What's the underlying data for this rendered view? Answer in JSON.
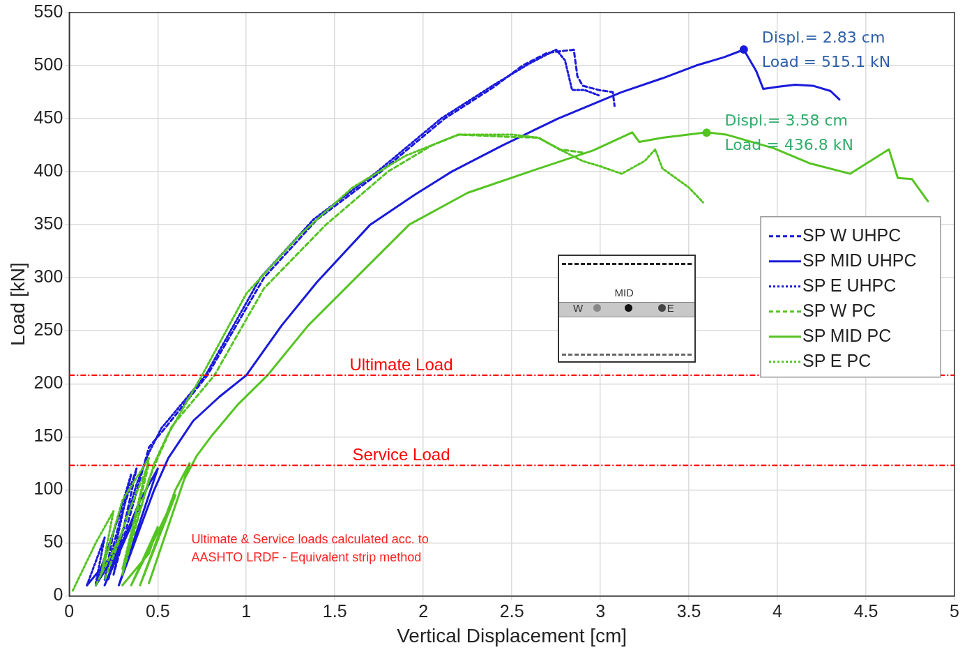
{
  "chart_data": {
    "type": "line",
    "xlabel": "Vertical Displacement [cm]",
    "ylabel": "Load [kN]",
    "xlim": [
      0,
      5
    ],
    "xticks": [
      0,
      0.5,
      1,
      1.5,
      2,
      2.5,
      3,
      3.5,
      4,
      4.5,
      5
    ],
    "ylim": [
      0,
      550
    ],
    "yticks": [
      0,
      50,
      100,
      150,
      200,
      250,
      300,
      350,
      400,
      450,
      500,
      550
    ],
    "grid": true,
    "legend": "right",
    "marker": "none",
    "series": [
      {
        "name": "SP W UHPC",
        "color": "#1a1adb",
        "line_style": "dashed",
        "x": [
          0.15,
          0.25,
          0.2,
          0.3,
          0.38,
          0.25,
          0.4,
          0.45,
          0.55,
          0.78,
          1.1,
          1.4,
          1.76,
          2.12,
          2.4,
          2.56,
          2.7,
          2.85,
          2.87,
          2.9,
          2.99,
          3.07,
          3.08
        ],
        "values": [
          10,
          60,
          15,
          80,
          120,
          20,
          110,
          140,
          160,
          208,
          300,
          355,
          400,
          450,
          480,
          500,
          512,
          515,
          490,
          481,
          477,
          475,
          462
        ]
      },
      {
        "name": "SP MID UHPC",
        "color": "#1a1adb",
        "line_style": "solid",
        "x": [
          0.1,
          0.25,
          0.3,
          0.15,
          0.3,
          0.4,
          0.2,
          0.4,
          0.5,
          0.28,
          0.48,
          0.56,
          0.6,
          0.7,
          0.85,
          1.0,
          1.2,
          1.4,
          1.7,
          1.95,
          2.16,
          2.45,
          2.76,
          3.12,
          3.35,
          3.54,
          3.7,
          3.81,
          3.88,
          3.92,
          4.0,
          4.1,
          4.2,
          4.3,
          4.35
        ],
        "values": [
          10,
          40,
          60,
          10,
          50,
          85,
          10,
          90,
          120,
          10,
          100,
          130,
          140,
          165,
          188,
          208,
          255,
          296,
          350,
          378,
          400,
          425,
          450,
          475,
          488,
          500,
          508,
          515,
          495,
          478,
          480,
          482,
          481,
          476,
          468
        ]
      },
      {
        "name": "SP E UHPC",
        "color": "#1a1adb",
        "line_style": "dotted",
        "x": [
          0.1,
          0.2,
          0.15,
          0.28,
          0.35,
          0.22,
          0.38,
          0.45,
          0.52,
          0.77,
          1.08,
          1.38,
          1.74,
          2.1,
          2.4,
          2.6,
          2.75,
          2.8,
          2.84,
          2.91,
          2.99
        ],
        "values": [
          10,
          55,
          12,
          75,
          115,
          15,
          105,
          135,
          158,
          208,
          300,
          355,
          400,
          450,
          482,
          502,
          515,
          505,
          477,
          477,
          472
        ]
      },
      {
        "name": "SP W PC",
        "color": "#55c422",
        "line_style": "dashed",
        "x": [
          0.15,
          0.3,
          0.2,
          0.35,
          0.45,
          0.3,
          0.45,
          0.5,
          0.58,
          0.82,
          1.1,
          1.45,
          1.8,
          2.05,
          2.2,
          2.45,
          2.65,
          2.77,
          2.9
        ],
        "values": [
          10,
          60,
          15,
          85,
          125,
          20,
          110,
          130,
          160,
          208,
          290,
          350,
          400,
          425,
          435,
          433,
          432,
          421,
          418
        ]
      },
      {
        "name": "SP MID PC",
        "color": "#55c422",
        "line_style": "solid",
        "x": [
          0.3,
          0.45,
          0.5,
          0.35,
          0.5,
          0.6,
          0.4,
          0.6,
          0.68,
          0.45,
          0.65,
          0.72,
          0.8,
          0.95,
          1.12,
          1.35,
          1.62,
          1.92,
          2.25,
          2.6,
          2.96,
          3.18,
          3.22,
          3.35,
          3.6,
          3.71,
          3.98,
          4.18,
          4.41,
          4.63,
          4.68,
          4.76,
          4.85
        ],
        "values": [
          10,
          40,
          65,
          10,
          60,
          95,
          10,
          100,
          125,
          12,
          110,
          132,
          150,
          180,
          208,
          255,
          300,
          350,
          380,
          400,
          420,
          437,
          428,
          432,
          437,
          435,
          422,
          408,
          398,
          421,
          394,
          393,
          372
        ]
      },
      {
        "name": "SP E PC",
        "color": "#55c422",
        "line_style": "dotted",
        "x": [
          0.02,
          0.15,
          0.25,
          0.18,
          0.3,
          0.45,
          0.3,
          0.48,
          0.55,
          0.75,
          1.0,
          1.3,
          1.6,
          1.9,
          2.2,
          2.5,
          2.65,
          2.77,
          2.9,
          3.0,
          3.12,
          3.25,
          3.31,
          3.35,
          3.5,
          3.58
        ],
        "values": [
          5,
          50,
          80,
          20,
          90,
          130,
          25,
          125,
          150,
          208,
          285,
          340,
          385,
          415,
          435,
          435,
          432,
          421,
          410,
          405,
          398,
          410,
          421,
          403,
          385,
          371
        ]
      }
    ],
    "ref_lines": [
      {
        "axis": "y",
        "value": 208,
        "label": "Ultimate Load",
        "color": "#ff0000",
        "line_style": "dashed"
      },
      {
        "axis": "y",
        "value": 123,
        "label": "Service Load",
        "color": "#ff0000",
        "line_style": "dashed"
      }
    ],
    "annotations": [
      {
        "text": "Displ.= 2.83 cm\nLoad = 515.1 kN",
        "x": 3.81,
        "y": 515.1
      },
      {
        "text": "Displ.= 3.58 cm\nLoad = 436.8 kN",
        "x": 3.6,
        "y": 436.8
      },
      "Ultimate & Service loads calculated acc. to\nAASHTO LRDF - Equivalent strip method",
      "MID",
      "W",
      "E"
    ]
  }
}
